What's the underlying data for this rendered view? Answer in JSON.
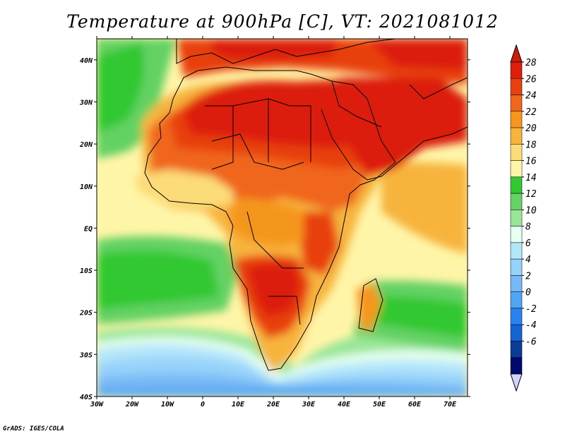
{
  "title": "Temperature at 900hPa [C], VT: 2021081012",
  "credit": "GrADS: IGES/COLA",
  "map": {
    "lon_range": [
      -30,
      75
    ],
    "lat_range": [
      -40,
      45
    ],
    "lat_ticks": [
      {
        "value": 40,
        "label": "40N"
      },
      {
        "value": 30,
        "label": "30N"
      },
      {
        "value": 20,
        "label": "20N"
      },
      {
        "value": 10,
        "label": "10N"
      },
      {
        "value": 0,
        "label": "EQ"
      },
      {
        "value": -10,
        "label": "10S"
      },
      {
        "value": -20,
        "label": "20S"
      },
      {
        "value": -30,
        "label": "30S"
      },
      {
        "value": -40,
        "label": "40S"
      }
    ],
    "lon_ticks": [
      {
        "value": -30,
        "label": "30W"
      },
      {
        "value": -20,
        "label": "20W"
      },
      {
        "value": -10,
        "label": "10W"
      },
      {
        "value": 0,
        "label": "0"
      },
      {
        "value": 10,
        "label": "10E"
      },
      {
        "value": 20,
        "label": "20E"
      },
      {
        "value": 30,
        "label": "30E"
      },
      {
        "value": 40,
        "label": "40E"
      },
      {
        "value": 50,
        "label": "50E"
      },
      {
        "value": 60,
        "label": "60E"
      },
      {
        "value": 70,
        "label": "70E"
      }
    ]
  },
  "colorbar": {
    "labels": [
      "28",
      "26",
      "24",
      "22",
      "20",
      "18",
      "16",
      "14",
      "12",
      "10",
      "8",
      "6",
      "4",
      "2",
      "0",
      "-2",
      "-4",
      "-6"
    ],
    "colors": [
      "#dc1e0a",
      "#e8410f",
      "#f0661a",
      "#f5961e",
      "#f7b43c",
      "#fcdc78",
      "#fff5a8",
      "#32c832",
      "#64d264",
      "#9ae698",
      "#e6fff0",
      "#b4e6fa",
      "#96d2fa",
      "#78b9f5",
      "#50a5f5",
      "#2882f0",
      "#1464d2",
      "#0a3c96",
      "#000a6e"
    ],
    "over_color": "#c81e0a",
    "under_color": "#d2d2fa"
  }
}
